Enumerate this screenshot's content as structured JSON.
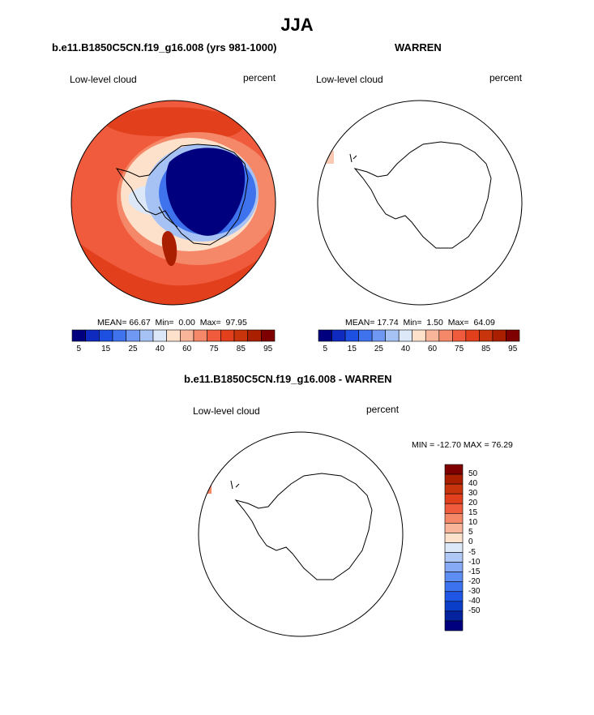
{
  "page": {
    "title": "JJA"
  },
  "colors": {
    "abs_scale": [
      "#00007f",
      "#0f2bbf",
      "#1d4fe0",
      "#3f73ee",
      "#6f98f3",
      "#a6c2f5",
      "#dce8f8",
      "#fde1cb",
      "#f9b59a",
      "#f48868",
      "#ef5b3c",
      "#e2401d",
      "#c8350c",
      "#a91f00",
      "#7f0000"
    ],
    "diff_scale": [
      "#00007f",
      "#05239f",
      "#0b3ec8",
      "#1f56e6",
      "#3d72ee",
      "#5f8ef2",
      "#87aaf4",
      "#b0c8f6",
      "#dce8f8",
      "#fde1cb",
      "#f9b59a",
      "#f48868",
      "#ef5b3c",
      "#e2401d",
      "#c8350c",
      "#a91f00",
      "#7f0000"
    ]
  },
  "chart_data": [
    {
      "type": "heatmap",
      "title": "b.e11.B1850C5CN.f19_g16.008 (yrs 981-1000)",
      "left_label": "Low-level cloud",
      "right_label": "percent",
      "stats": {
        "mean_label": "MEAN=",
        "mean": "66.67",
        "min_label": "Min=",
        "min": "0.00",
        "max_label": "Max=",
        "max": "97.95"
      },
      "colorbar": {
        "tick_labels": [
          "5",
          "15",
          "25",
          "40",
          "60",
          "75",
          "85",
          "95"
        ]
      }
    },
    {
      "type": "heatmap",
      "title": "WARREN",
      "left_label": "Low-level cloud",
      "right_label": "percent",
      "stats": {
        "mean_label": "MEAN=",
        "mean": "17.74",
        "min_label": "Min=",
        "min": "1.50",
        "max_label": "Max=",
        "max": "64.09"
      },
      "colorbar": {
        "tick_labels": [
          "5",
          "15",
          "25",
          "40",
          "60",
          "75",
          "85",
          "95"
        ]
      }
    },
    {
      "type": "heatmap",
      "title": "b.e11.B1850C5CN.f19_g16.008 - WARREN",
      "left_label": "Low-level cloud",
      "right_label": "percent",
      "minmax_text": "MIN = -12.70 MAX = 76.29",
      "colorbar": {
        "tick_labels": [
          "50",
          "40",
          "30",
          "20",
          "15",
          "10",
          "5",
          "0",
          "-5",
          "-10",
          "-15",
          "-20",
          "-30",
          "-40",
          "-50"
        ]
      }
    }
  ]
}
